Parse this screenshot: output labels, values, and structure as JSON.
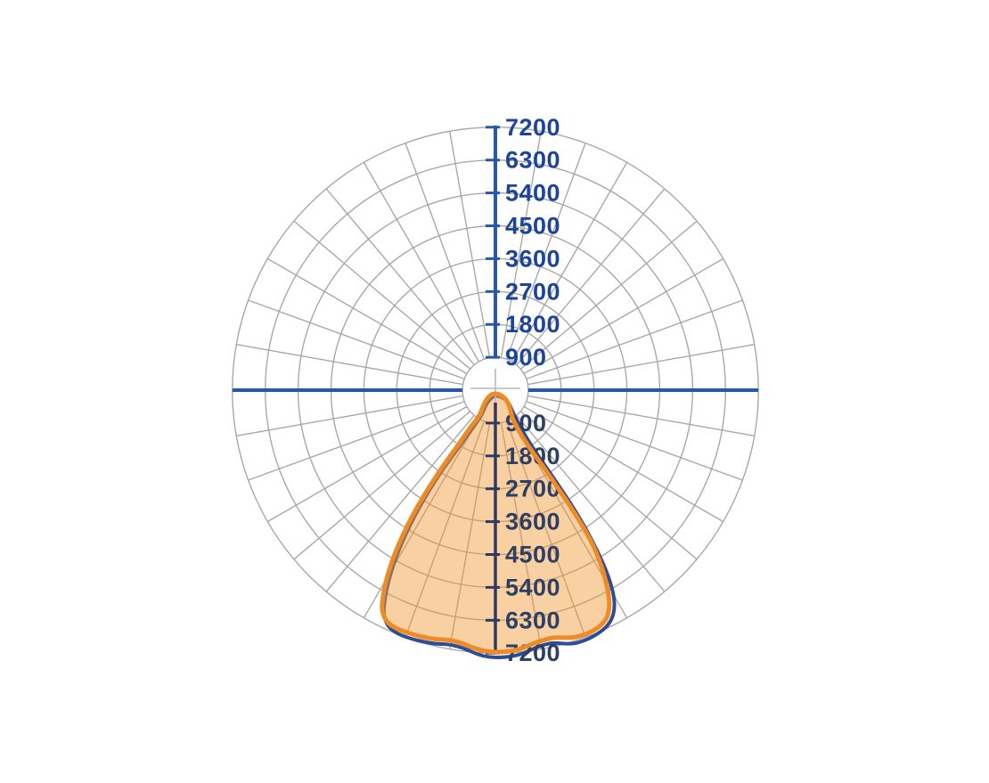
{
  "page": {
    "background": "#ffffff",
    "description": "Polar luminous intensity distribution curve (photometric polar diagram)"
  },
  "chart_data": {
    "type": "polar",
    "title": "",
    "legend": "none",
    "grid": true,
    "rings": 8,
    "angular_grid_step_deg": 10,
    "radial_axis": {
      "min": 0,
      "max": 7200,
      "step": 900,
      "labels_top": [
        "7200",
        "6300",
        "5400",
        "4500",
        "3600",
        "2700",
        "1800",
        "900"
      ],
      "labels_bottom": [
        "900",
        "1800",
        "2700",
        "3600",
        "4500",
        "5400",
        "6300",
        "7200"
      ]
    },
    "series": [
      {
        "name": "intensity-curve-blue",
        "color": "#2f4d95",
        "angle_reference": "degrees from nadir (0 = straight down)",
        "points": [
          [
            -90,
            0
          ],
          [
            -80,
            320
          ],
          [
            -70,
            640
          ],
          [
            -60,
            720
          ],
          [
            -50,
            1500
          ],
          [
            -45,
            2350
          ],
          [
            -40,
            3850
          ],
          [
            -35,
            5200
          ],
          [
            -30,
            6500
          ],
          [
            -25,
            7000
          ],
          [
            -20,
            7050
          ],
          [
            -15,
            7100
          ],
          [
            -10,
            7200
          ],
          [
            -5,
            7300
          ],
          [
            0,
            7350
          ],
          [
            5,
            7300
          ],
          [
            10,
            7200
          ],
          [
            15,
            7100
          ],
          [
            20,
            7050
          ],
          [
            25,
            7000
          ],
          [
            30,
            6500
          ],
          [
            35,
            5200
          ],
          [
            40,
            3850
          ],
          [
            45,
            2350
          ],
          [
            50,
            1500
          ],
          [
            60,
            720
          ],
          [
            70,
            640
          ],
          [
            80,
            320
          ],
          [
            90,
            0
          ]
        ]
      },
      {
        "name": "intensity-curve-orange",
        "color": "#ee8b25",
        "fill": "#f0962e",
        "angle_reference": "degrees from nadir (0 = straight down)",
        "points": [
          [
            -90,
            0
          ],
          [
            -80,
            310
          ],
          [
            -70,
            620
          ],
          [
            -60,
            700
          ],
          [
            -50,
            1450
          ],
          [
            -45,
            2300
          ],
          [
            -40,
            3750
          ],
          [
            -35,
            5100
          ],
          [
            -30,
            6400
          ],
          [
            -25,
            6950
          ],
          [
            -20,
            7000
          ],
          [
            -15,
            7050
          ],
          [
            -10,
            7150
          ],
          [
            -5,
            7200
          ],
          [
            0,
            7250
          ],
          [
            5,
            7200
          ],
          [
            10,
            7150
          ],
          [
            15,
            7050
          ],
          [
            20,
            7000
          ],
          [
            25,
            6950
          ],
          [
            30,
            6400
          ],
          [
            35,
            5100
          ],
          [
            40,
            3750
          ],
          [
            45,
            2300
          ],
          [
            50,
            1450
          ],
          [
            60,
            700
          ],
          [
            70,
            620
          ],
          [
            80,
            310
          ],
          [
            90,
            0
          ]
        ]
      }
    ],
    "colors": {
      "axis": "#2857a8",
      "axis_lower": "#2e3a63",
      "labels": "#1c4499",
      "labels_lower": "#2e3f66",
      "grid": "#a8a8a8",
      "center_cross": "#b9b9b9",
      "curve_orange": "#ee8b25",
      "curve_orange_fill": "#f0962e",
      "curve_blue": "#2f4d95"
    }
  }
}
